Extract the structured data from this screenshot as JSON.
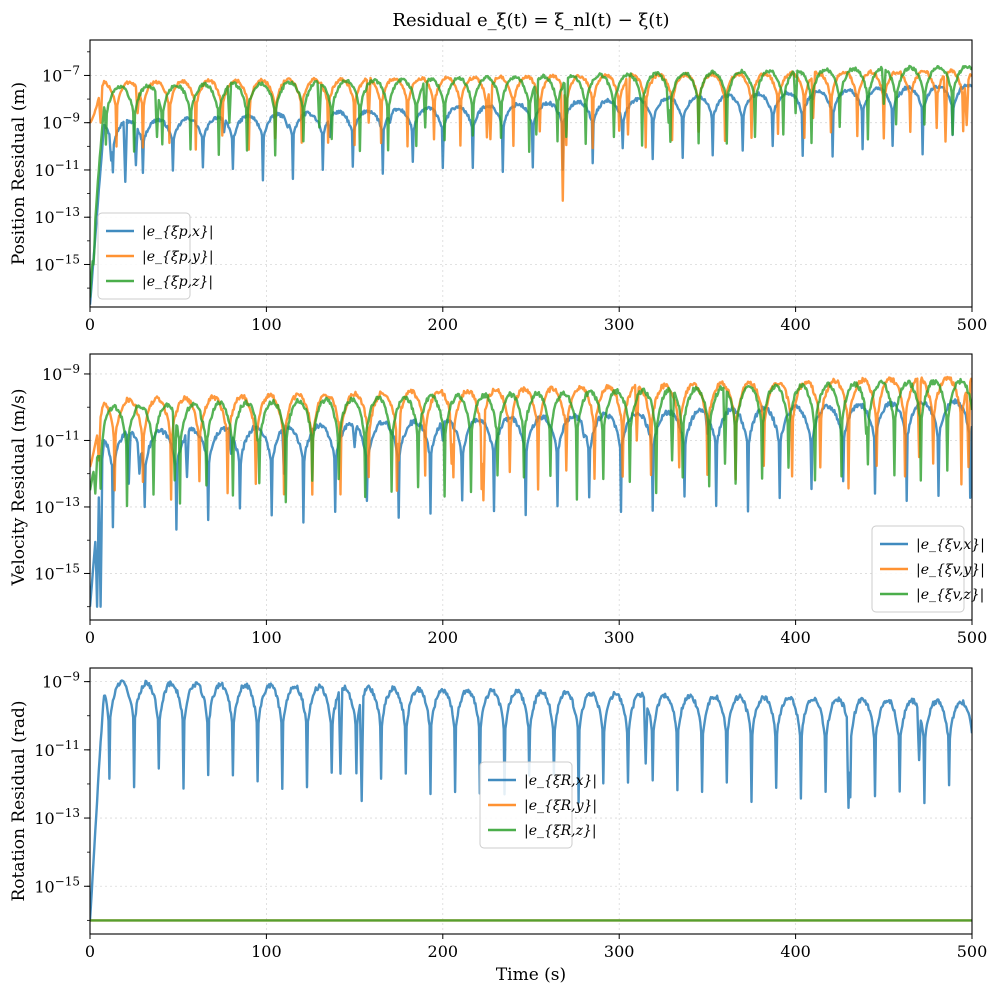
{
  "figure": {
    "title": "Residual e_ξ(t) = ξ_nl(t) − ξ(t)",
    "xlabel": "Time (s)"
  },
  "colors": {
    "x": "#1f77b4",
    "y": "#ff7f0e",
    "z": "#2ca02c"
  },
  "chart_data": [
    {
      "type": "line",
      "ylabel": "Position Residual (m)",
      "yscale": "log",
      "xlim": [
        0,
        500
      ],
      "ylim_exp": [
        -16.8,
        -5.5
      ],
      "xticks": [
        "0",
        "100",
        "200",
        "300",
        "400",
        "500"
      ],
      "yticks": [
        -15,
        -13,
        -11,
        -9,
        -7
      ],
      "ytick_labels": [
        "10−15",
        "10−13",
        "10−11",
        "10−9",
        "10−7"
      ],
      "legend_loc": "lower-left",
      "series": [
        {
          "name": "|e_{ξp,x}|",
          "color": "#1f77b4",
          "model": {
            "start": -16.7,
            "base": [
              -9.0,
              -7.4
            ],
            "amp": 0.8,
            "period": 17,
            "phase": 4,
            "dips": [
              [
                12,
                -10.6
              ],
              [
                20,
                -11.5
              ],
              [
                26,
                -10.8
              ],
              [
                46,
                -9.5
              ],
              [
                76,
                -9.4
              ],
              [
                112,
                -9.2
              ],
              [
                136,
                -9.6
              ],
              [
                170,
                -9.0
              ],
              [
                200,
                -8.6
              ],
              [
                255,
                -8.4
              ],
              [
                305,
                -8.2
              ],
              [
                350,
                -8.0
              ],
              [
                410,
                -8.0
              ],
              [
                460,
                -7.8
              ]
            ]
          }
        },
        {
          "name": "|e_{ξp,y}|",
          "color": "#ff7f0e",
          "model": {
            "start": -9.0,
            "base": [
              -7.3,
              -6.8
            ],
            "amp": 0.9,
            "period": 15,
            "phase": 0,
            "dips": [
              [
                6,
                -9.0
              ],
              [
                27,
                -8.6
              ],
              [
                90,
                -9.1
              ],
              [
                158,
                -9.0
              ],
              [
                227,
                -9.7
              ],
              [
                268,
                -12.3
              ],
              [
                305,
                -9.5
              ],
              [
                410,
                -8.8
              ],
              [
                485,
                -9.8
              ],
              [
                497,
                -9.1
              ]
            ]
          }
        },
        {
          "name": "|e_{ξp,z}|",
          "color": "#2ca02c",
          "model": {
            "start": -16.4,
            "base": [
              -7.5,
              -6.6
            ],
            "amp": 1.0,
            "period": 16,
            "phase": 7,
            "dips": [
              [
                2,
                -15.0
              ],
              [
                38,
                -9.6
              ],
              [
                79,
                -9.0
              ],
              [
                130,
                -9.2
              ],
              [
                190,
                -9.2
              ],
              [
                253,
                -9.5
              ],
              [
                270,
                -9.6
              ],
              [
                328,
                -9.0
              ],
              [
                400,
                -8.6
              ],
              [
                450,
                -8.2
              ]
            ]
          }
        }
      ]
    },
    {
      "type": "line",
      "ylabel": "Velocity Residual (m/s)",
      "yscale": "log",
      "xlim": [
        0,
        500
      ],
      "ylim_exp": [
        -16.4,
        -8.4
      ],
      "xticks": [
        "0",
        "100",
        "200",
        "300",
        "400",
        "500"
      ],
      "yticks": [
        -15,
        -13,
        -11,
        -9
      ],
      "ytick_labels": [
        "10−15",
        "10−13",
        "10−11",
        "10−9"
      ],
      "legend_loc": "lower-right",
      "series": [
        {
          "name": "|e_{ξv,x}|",
          "color": "#1f77b4",
          "model": {
            "start": -16.0,
            "base": [
              -10.8,
              -9.8
            ],
            "amp": 0.9,
            "period": 18,
            "phase": 5,
            "dips": [
              [
                4,
                -16.0
              ],
              [
                6,
                -16.0
              ],
              [
                22,
                -12.3
              ],
              [
                28,
                -12.0
              ],
              [
                55,
                -12.1
              ],
              [
                80,
                -11.4
              ],
              [
                110,
                -12.0
              ],
              [
                150,
                -11.2
              ],
              [
                200,
                -11.0
              ],
              [
                280,
                -10.9
              ],
              [
                350,
                -10.8
              ]
            ]
          }
        },
        {
          "name": "|e_{ξv,y}|",
          "color": "#ff7f0e",
          "model": {
            "start": -11.8,
            "base": [
              -9.8,
              -9.1
            ],
            "amp": 1.0,
            "period": 16,
            "phase": 2,
            "dips": [
              [
                5,
                -11.6
              ],
              [
                175,
                -11.6
              ],
              [
                205,
                -11.7
              ],
              [
                223,
                -12.8
              ],
              [
                310,
                -11.0
              ],
              [
                470,
                -11.5
              ],
              [
                498,
                -11.8
              ]
            ]
          }
        },
        {
          "name": "|e_{ξv,z}|",
          "color": "#2ca02c",
          "model": {
            "start": -12.5,
            "base": [
              -10.0,
              -9.2
            ],
            "amp": 1.0,
            "period": 15,
            "phase": 9,
            "dips": [
              [
                3,
                -12.6
              ],
              [
                48,
                -12.2
              ],
              [
                95,
                -11.0
              ],
              [
                330,
                -11.6
              ],
              [
                360,
                -11.7
              ],
              [
                440,
                -10.8
              ]
            ]
          }
        }
      ]
    },
    {
      "type": "line",
      "ylabel": "Rotation Residual (rad)",
      "yscale": "log",
      "xlim": [
        0,
        500
      ],
      "ylim_exp": [
        -16.4,
        -8.6
      ],
      "xticks": [
        "0",
        "100",
        "200",
        "300",
        "400",
        "500"
      ],
      "yticks": [
        -15,
        -13,
        -11,
        -9
      ],
      "ytick_labels": [
        "10−15",
        "10−13",
        "10−11",
        "10−9"
      ],
      "legend_loc": "center",
      "series": [
        {
          "name": "|e_{ξR,x}|",
          "color": "#1f77b4",
          "model": {
            "start": -16.0,
            "base": [
              -9.0,
              -9.6
            ],
            "amp": 1.0,
            "period": 14,
            "phase": 3,
            "dips": [
              [
                2,
                -11.6
              ],
              [
                4,
                -11.9
              ],
              [
                142,
                -11.7
              ],
              [
                154,
                -12.5
              ],
              [
                315,
                -11.4
              ],
              [
                430,
                -12.7
              ],
              [
                470,
                -11.3
              ]
            ]
          }
        },
        {
          "name": "|e_{ξR,y}|",
          "color": "#ff7f0e",
          "model": {
            "constant": -16.0
          }
        },
        {
          "name": "|e_{ξR,z}|",
          "color": "#2ca02c",
          "model": {
            "constant": -16.0
          }
        }
      ]
    }
  ]
}
